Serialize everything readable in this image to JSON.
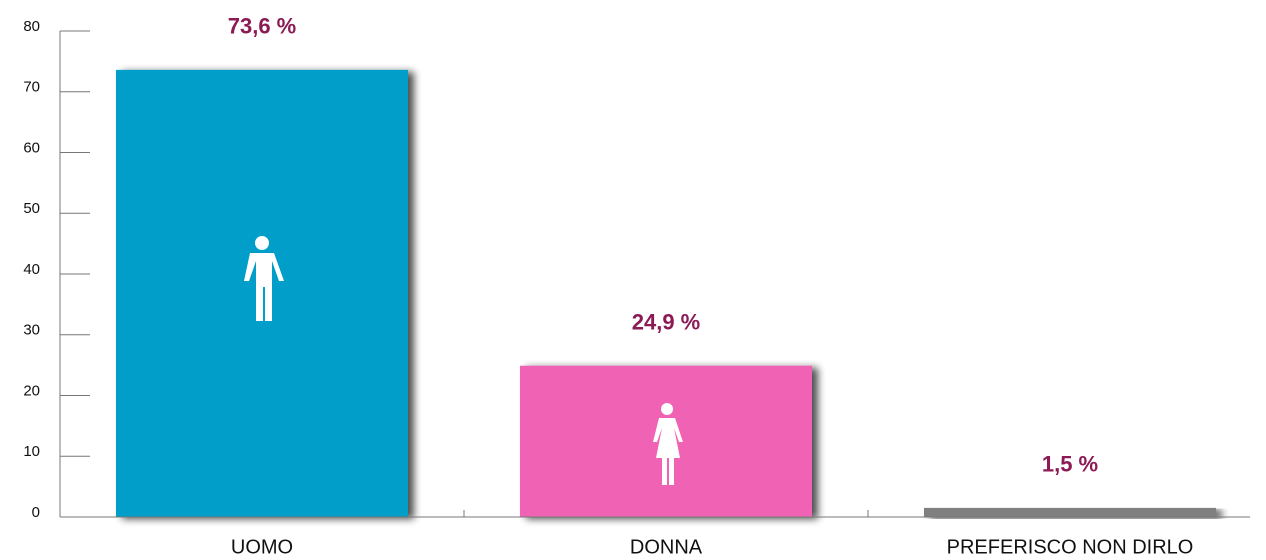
{
  "chart_data": {
    "type": "bar",
    "categories": [
      "UOMO",
      "DONNA",
      "PREFERISCO NON DIRLO"
    ],
    "values": [
      73.6,
      24.9,
      1.5
    ],
    "value_labels": [
      "73,6 %",
      "24,9 %",
      "1,5 %"
    ],
    "colors": [
      "#009ec8",
      "#f064b4",
      "#808080"
    ],
    "ylim": [
      0,
      80
    ],
    "yticks": [
      0,
      10,
      20,
      30,
      40,
      50,
      60,
      70,
      80
    ]
  }
}
